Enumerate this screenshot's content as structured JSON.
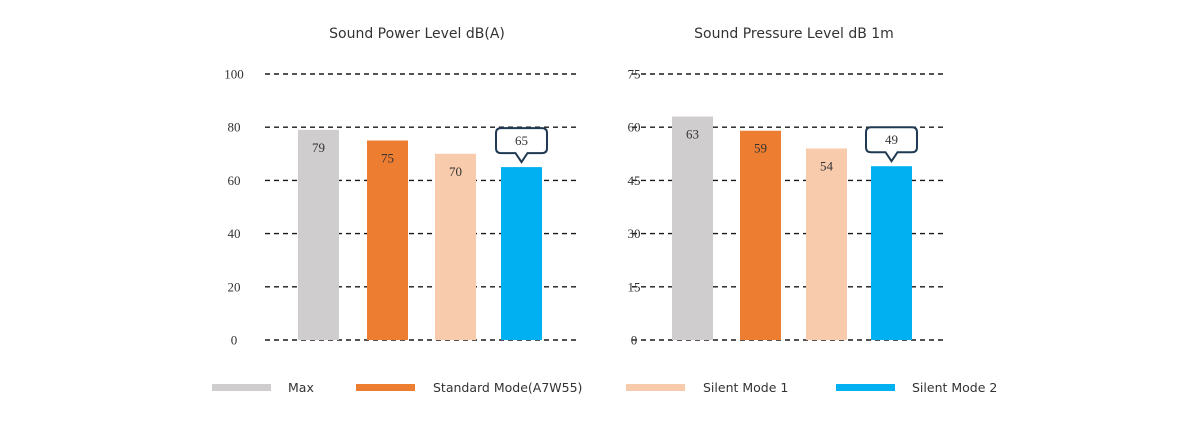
{
  "chart_data": [
    {
      "type": "bar",
      "title": "Sound Power Level dB(A)",
      "categories": [
        "Max",
        "Standard Mode(A7W55)",
        "Silent Mode 1",
        "Silent Mode 2"
      ],
      "values": [
        79,
        75,
        70,
        65
      ],
      "ylim": [
        0,
        100
      ],
      "yticks": [
        0,
        20,
        40,
        60,
        80,
        100
      ],
      "highlight_index": 3,
      "grid": "dashed horizontal"
    },
    {
      "type": "bar",
      "title": "Sound Pressure Level dB 1m",
      "categories": [
        "Max",
        "Standard Mode(A7W55)",
        "Silent Mode 1",
        "Silent Mode 2"
      ],
      "values": [
        63,
        59,
        54,
        49
      ],
      "ylim": [
        0,
        75
      ],
      "yticks": [
        0,
        15,
        30,
        45,
        60,
        75
      ],
      "highlight_index": 3,
      "grid": "dashed horizontal"
    }
  ],
  "legend": [
    {
      "label": "Max",
      "color": "#cfcdce"
    },
    {
      "label": "Standard Mode(A7W55)",
      "color": "#ed7d31"
    },
    {
      "label": "Silent Mode 1",
      "color": "#f8cbad"
    },
    {
      "label": "Silent Mode 2",
      "color": "#00b0f0"
    }
  ],
  "callout_color": "#1f3a52"
}
